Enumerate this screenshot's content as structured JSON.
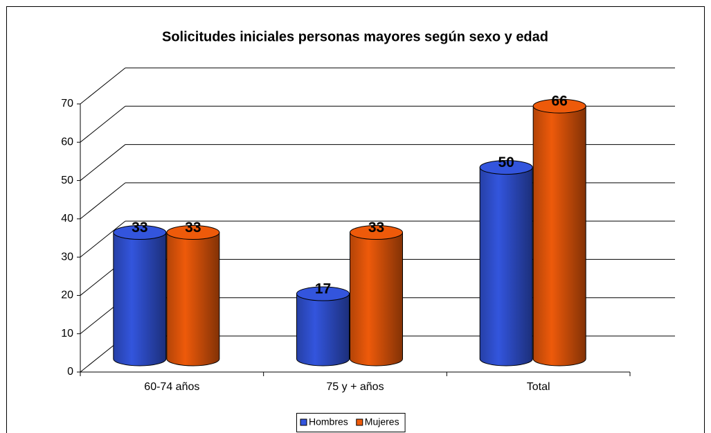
{
  "chart_data": {
    "type": "bar3d",
    "title": "Solicitudes iniciales personas mayores según sexo y edad",
    "categories": [
      "60-74 años",
      "75 y + años",
      "Total"
    ],
    "series": [
      {
        "name": "Hombres",
        "color": "#3355dd",
        "values": [
          33,
          17,
          50
        ]
      },
      {
        "name": "Mujeres",
        "color": "#ee5a0a",
        "values": [
          33,
          33,
          66
        ]
      }
    ],
    "ylim": [
      0,
      70
    ],
    "yticks": [
      0,
      10,
      20,
      30,
      40,
      50,
      60,
      70
    ],
    "grid": true,
    "legend": "bottom"
  }
}
